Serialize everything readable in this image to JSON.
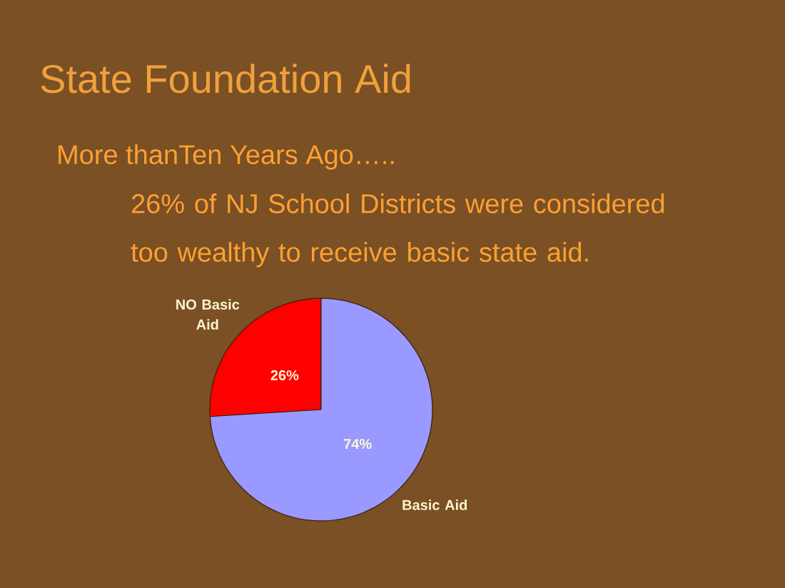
{
  "chart_data": {
    "type": "pie",
    "title": "State Foundation Aid",
    "subtitle": "More thanTen Years Ago…..",
    "annotations": [
      "26% of NJ School Districts were considered too wealthy to receive basic state aid."
    ],
    "categories": [
      "NO Basic Aid",
      "Basic Aid"
    ],
    "values": [
      26,
      74
    ],
    "colors": [
      "#ff0000",
      "#9999ff"
    ],
    "value_labels": [
      "26%",
      "74%"
    ],
    "legend": false
  }
}
